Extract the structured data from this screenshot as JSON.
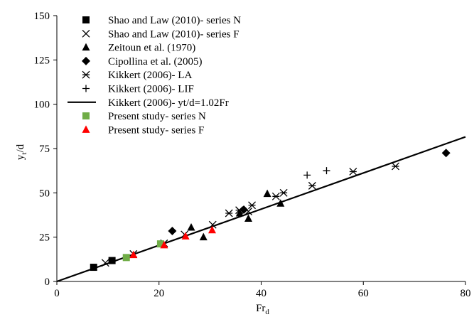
{
  "chart_data": {
    "type": "scatter",
    "title": "",
    "xlabel": "Fr",
    "xlabel_sub": "d",
    "ylabel": "y",
    "ylabel_sub": "t",
    "ylabel_suffix": "/d",
    "xlim": [
      0,
      80
    ],
    "ylim": [
      0,
      150
    ],
    "xticks": [
      0,
      20,
      40,
      60,
      80
    ],
    "yticks": [
      0,
      25,
      50,
      75,
      100,
      125,
      150
    ],
    "grid": false,
    "legend_position": "top-left",
    "series": [
      {
        "name": "Shao and Law (2010)- series N",
        "marker": "square",
        "color": "#000000",
        "points": [
          [
            7.2,
            8.0
          ],
          [
            10.8,
            11.8
          ]
        ]
      },
      {
        "name": "Shao and Law (2010)- series F",
        "marker": "x",
        "color": "#000000",
        "points": [
          [
            9.5,
            10.5
          ],
          [
            15.0,
            15.5
          ],
          [
            21.0,
            21.5
          ],
          [
            25.0,
            26.5
          ],
          [
            30.5,
            32.0
          ],
          [
            37.5,
            39.5
          ]
        ]
      },
      {
        "name": "Zeitoun et al. (1970)",
        "marker": "triangle",
        "color": "#000000",
        "points": [
          [
            26.3,
            30.5
          ],
          [
            28.7,
            25.0
          ],
          [
            35.8,
            38.5
          ],
          [
            37.5,
            35.5
          ],
          [
            41.2,
            49.5
          ],
          [
            43.8,
            44.0
          ]
        ]
      },
      {
        "name": "Cipollina et al. (2005)",
        "marker": "diamond",
        "color": "#000000",
        "points": [
          [
            22.6,
            28.5
          ],
          [
            36.6,
            40.5
          ],
          [
            76.2,
            72.5
          ]
        ]
      },
      {
        "name": "Kikkert (2006)- LA",
        "marker": "asterisk",
        "color": "#000000",
        "points": [
          [
            33.7,
            38.5
          ],
          [
            35.7,
            40.2
          ],
          [
            38.2,
            43.0
          ],
          [
            42.9,
            48.0
          ],
          [
            44.4,
            50.0
          ],
          [
            50.0,
            54.0
          ],
          [
            58.0,
            62.0
          ],
          [
            66.3,
            65.0
          ]
        ]
      },
      {
        "name": "Kikkert (2006)- LIF",
        "marker": "plus",
        "color": "#000000",
        "points": [
          [
            49.0,
            60.0
          ],
          [
            52.8,
            62.5
          ]
        ]
      },
      {
        "name": "Kikkert (2006)- yt/d=1.02Fr",
        "marker": "line",
        "color": "#000000",
        "line": {
          "slope": 1.02,
          "x": [
            0,
            80
          ]
        }
      },
      {
        "name": "Present study- series N",
        "marker": "square",
        "color": "#70ad47",
        "points": [
          [
            13.6,
            13.5
          ],
          [
            20.3,
            21.2
          ]
        ]
      },
      {
        "name": "Present study- series F",
        "marker": "triangle",
        "color": "#ff0000",
        "points": [
          [
            15.0,
            15.0
          ],
          [
            21.0,
            20.5
          ],
          [
            25.2,
            25.5
          ],
          [
            30.4,
            29.0
          ]
        ]
      }
    ]
  }
}
